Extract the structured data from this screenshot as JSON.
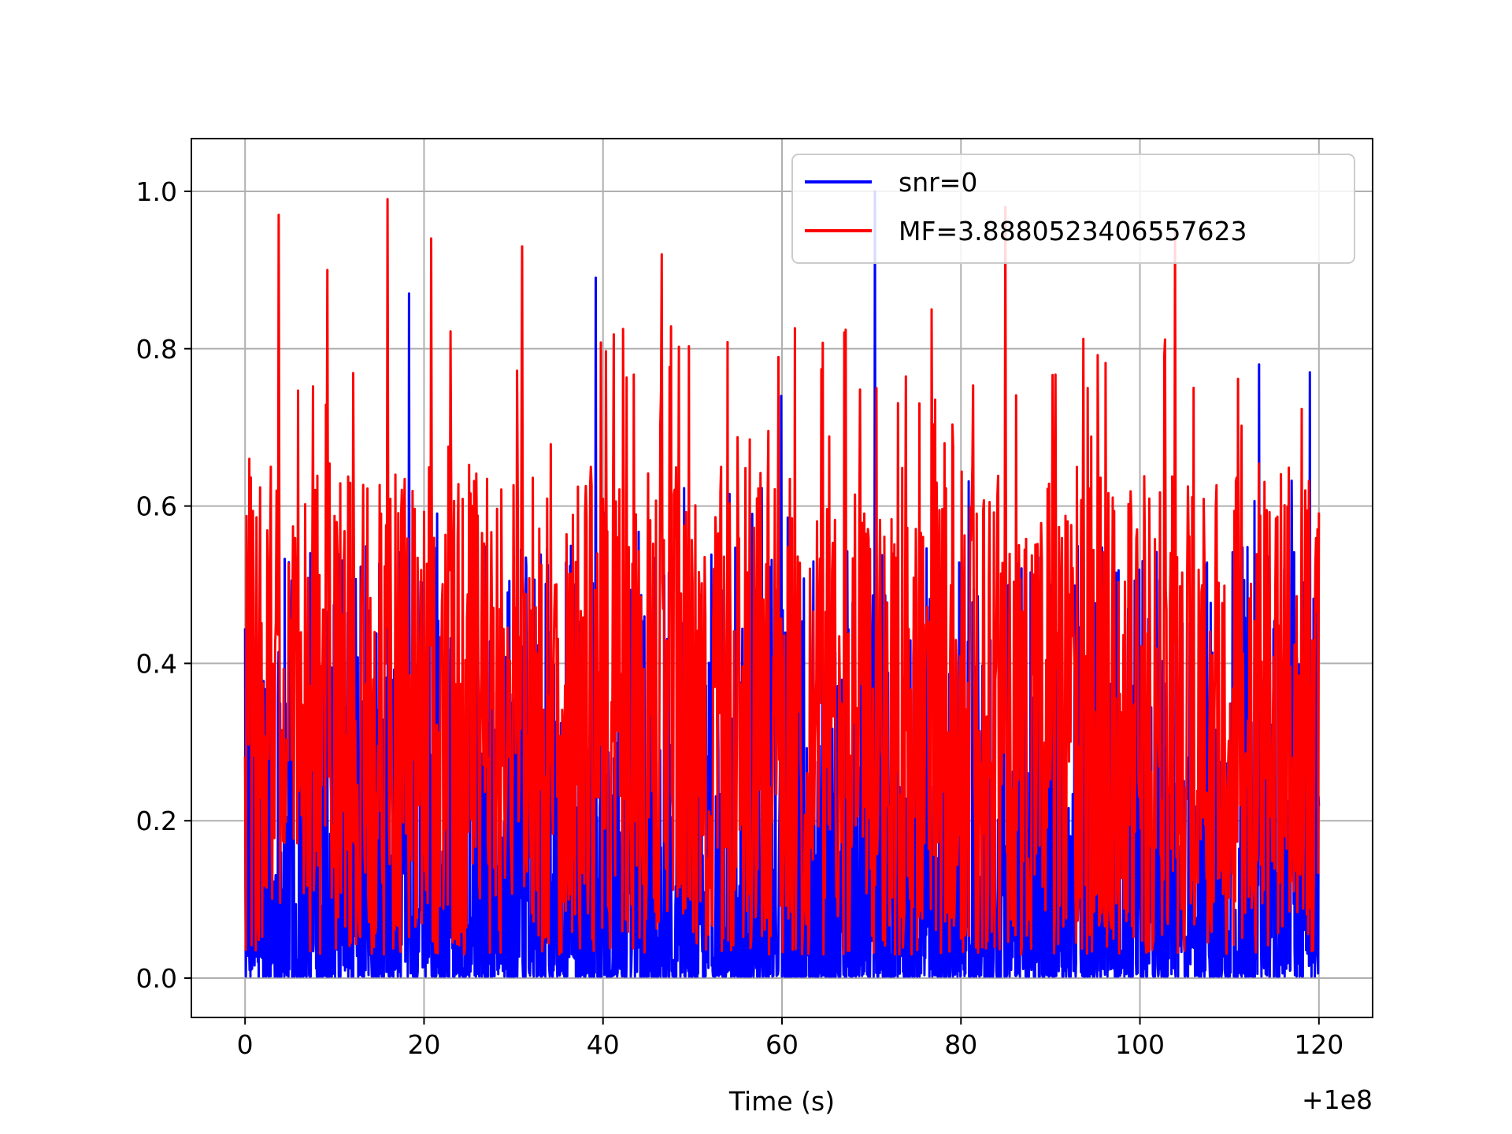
{
  "chart_data": {
    "type": "line",
    "xlabel": "Time (s)",
    "ylabel": "",
    "x_offset_label": "+1e8",
    "xlim": [
      -6,
      126
    ],
    "ylim": [
      -0.05,
      1.067
    ],
    "xticks": [
      0,
      20,
      40,
      60,
      80,
      100,
      120
    ],
    "xtick_labels": [
      "0",
      "20",
      "40",
      "60",
      "80",
      "100",
      "120"
    ],
    "yticks": [
      0.0,
      0.2,
      0.4,
      0.6,
      0.8,
      1.0
    ],
    "ytick_labels": [
      "0.0",
      "0.2",
      "0.4",
      "0.6",
      "0.8",
      "1.0"
    ],
    "grid": true,
    "legend_position": "top-right",
    "x_range_data": [
      0,
      120
    ],
    "series": [
      {
        "name": "snr=0",
        "color": "#0000ff",
        "peaks": [
          {
            "x": 18.3,
            "y": 0.87
          },
          {
            "x": 39.2,
            "y": 0.89
          },
          {
            "x": 59.9,
            "y": 0.74
          },
          {
            "x": 70.4,
            "y": 1.0
          },
          {
            "x": 113.3,
            "y": 0.78
          },
          {
            "x": 119.0,
            "y": 0.77
          }
        ],
        "typical_range": [
          0.0,
          0.35
        ]
      },
      {
        "name": "MF=3.8880523406557623",
        "color": "#ff0000",
        "peaks": [
          {
            "x": 0.5,
            "y": 0.66
          },
          {
            "x": 3.8,
            "y": 0.97
          },
          {
            "x": 9.2,
            "y": 0.9
          },
          {
            "x": 15.9,
            "y": 0.99
          },
          {
            "x": 20.8,
            "y": 0.94
          },
          {
            "x": 31.0,
            "y": 0.93
          },
          {
            "x": 46.6,
            "y": 0.92
          },
          {
            "x": 85.0,
            "y": 0.98
          },
          {
            "x": 103.9,
            "y": 0.95
          }
        ],
        "typical_range": [
          0.05,
          0.6
        ]
      }
    ]
  }
}
